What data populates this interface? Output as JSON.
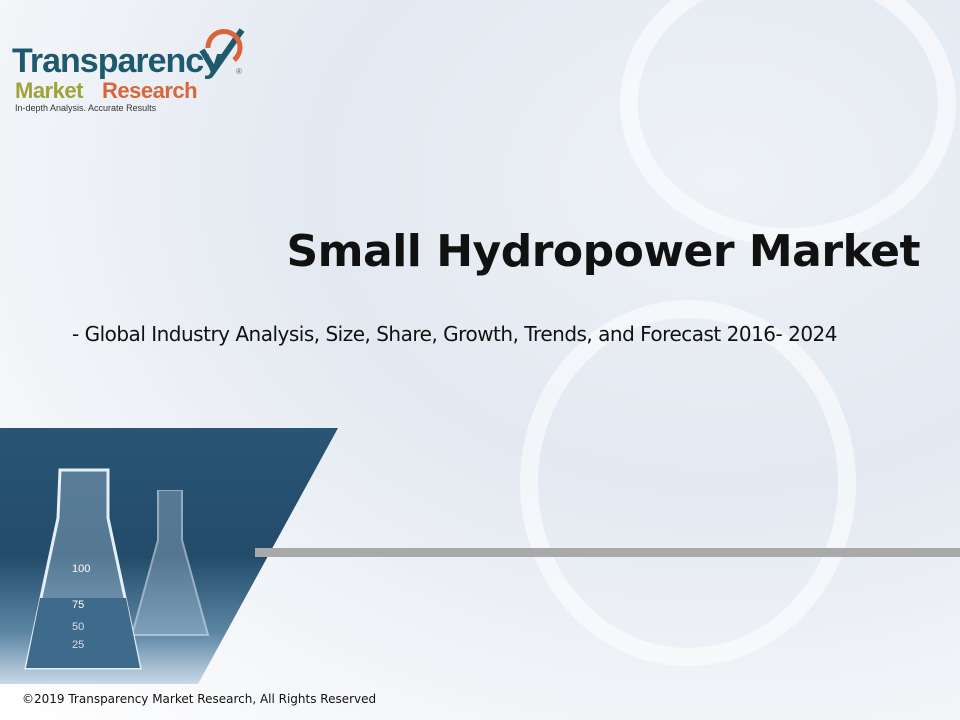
{
  "logo": {
    "line1": "Transparency",
    "line2a": "Market",
    "line2b": "Research",
    "tagline": "In-depth Analysis. Accurate Results",
    "registered": "®"
  },
  "slide": {
    "title": "Small Hydropower Market",
    "subtitle": "- Global Industry Analysis, Size, Share, Growth, Trends, and Forecast 2016- 2024"
  },
  "image": {
    "flask_marks": [
      "100",
      "75",
      "50",
      "25"
    ]
  },
  "footer": {
    "copyright": "©2019 Transparency Market Research, All Rights Reserved"
  },
  "colors": {
    "logo_teal": "#1e5a6e",
    "logo_olive": "#a0a23a",
    "logo_orange": "#d8663a",
    "divider": "#a9a9a9"
  }
}
